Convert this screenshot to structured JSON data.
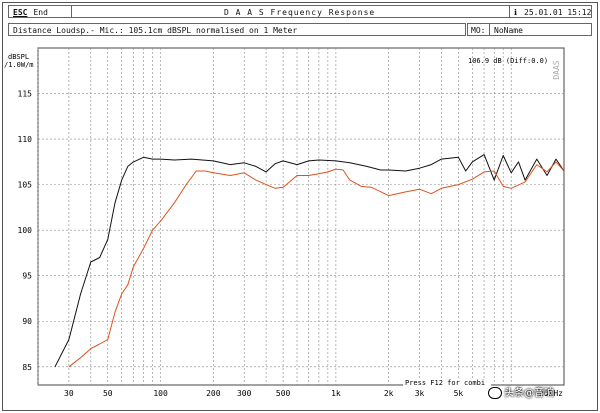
{
  "topbar": {
    "esc_key": "ESC",
    "esc_label": "End",
    "title": "D A A S  Frequency Response",
    "info_icon": "info-icon",
    "datetime": "25.01.01 15:12"
  },
  "infobar": {
    "description": "Distance Loudsp.- Mic.: 105.1cm dBSPL normalised on 1 Meter",
    "mo_label": "MO:",
    "mo_value": "NoName"
  },
  "chart_data": {
    "type": "line",
    "ylabel_line1": "dBSPL",
    "ylabel_line2": "/1.0W/m",
    "ylim": [
      83,
      120
    ],
    "yticks": [
      85,
      90,
      95,
      100,
      105,
      110,
      115
    ],
    "xscale": "log",
    "xlim": [
      20,
      20000
    ],
    "xtick_labels": [
      {
        "f": 30,
        "label": "30"
      },
      {
        "f": 50,
        "label": "50"
      },
      {
        "f": 100,
        "label": "100"
      },
      {
        "f": 200,
        "label": "200"
      },
      {
        "f": 300,
        "label": "300"
      },
      {
        "f": 500,
        "label": "500"
      },
      {
        "f": 1000,
        "label": "1k"
      },
      {
        "f": 2000,
        "label": "2k"
      },
      {
        "f": 3000,
        "label": "3k"
      },
      {
        "f": 5000,
        "label": "5k"
      },
      {
        "f": 20000,
        "label": "20kHz"
      }
    ],
    "grid": true,
    "readout": "106.9 dB (Diff:0.0)",
    "watermark": "DAAS",
    "footer_hint": "Press F12 for combi",
    "series": [
      {
        "color": "#111111",
        "points": [
          [
            25,
            85
          ],
          [
            30,
            88
          ],
          [
            35,
            93
          ],
          [
            40,
            96.5
          ],
          [
            45,
            97
          ],
          [
            50,
            99
          ],
          [
            55,
            103
          ],
          [
            60,
            105.5
          ],
          [
            65,
            107
          ],
          [
            70,
            107.5
          ],
          [
            80,
            108
          ],
          [
            90,
            107.8
          ],
          [
            100,
            107.8
          ],
          [
            120,
            107.7
          ],
          [
            150,
            107.8
          ],
          [
            200,
            107.6
          ],
          [
            250,
            107.2
          ],
          [
            300,
            107.4
          ],
          [
            350,
            107
          ],
          [
            400,
            106.4
          ],
          [
            450,
            107.3
          ],
          [
            500,
            107.6
          ],
          [
            600,
            107.2
          ],
          [
            700,
            107.6
          ],
          [
            800,
            107.7
          ],
          [
            1000,
            107.6
          ],
          [
            1200,
            107.4
          ],
          [
            1500,
            107
          ],
          [
            1800,
            106.6
          ],
          [
            2000,
            106.6
          ],
          [
            2500,
            106.5
          ],
          [
            3000,
            106.8
          ],
          [
            3500,
            107.2
          ],
          [
            4000,
            107.8
          ],
          [
            5000,
            108
          ],
          [
            5500,
            106.5
          ],
          [
            6000,
            107.5
          ],
          [
            7000,
            108.3
          ],
          [
            8000,
            105.5
          ],
          [
            9000,
            108.2
          ],
          [
            10000,
            106.3
          ],
          [
            11000,
            107.5
          ],
          [
            12000,
            105.5
          ],
          [
            14000,
            107.8
          ],
          [
            16000,
            106
          ],
          [
            18000,
            107.8
          ],
          [
            20000,
            106.5
          ]
        ]
      },
      {
        "color": "#e0521c",
        "points": [
          [
            30,
            85
          ],
          [
            35,
            86
          ],
          [
            40,
            87
          ],
          [
            45,
            87.5
          ],
          [
            50,
            88
          ],
          [
            55,
            91
          ],
          [
            60,
            93
          ],
          [
            65,
            94
          ],
          [
            70,
            96
          ],
          [
            80,
            98
          ],
          [
            90,
            100
          ],
          [
            100,
            101
          ],
          [
            120,
            103
          ],
          [
            140,
            105
          ],
          [
            160,
            106.5
          ],
          [
            180,
            106.5
          ],
          [
            200,
            106.3
          ],
          [
            250,
            106
          ],
          [
            300,
            106.3
          ],
          [
            350,
            105.5
          ],
          [
            400,
            105
          ],
          [
            450,
            104.6
          ],
          [
            500,
            104.7
          ],
          [
            600,
            106
          ],
          [
            700,
            106
          ],
          [
            800,
            106.2
          ],
          [
            900,
            106.4
          ],
          [
            1000,
            106.7
          ],
          [
            1100,
            106.6
          ],
          [
            1200,
            105.5
          ],
          [
            1400,
            104.8
          ],
          [
            1600,
            104.7
          ],
          [
            2000,
            103.8
          ],
          [
            2500,
            104.2
          ],
          [
            3000,
            104.5
          ],
          [
            3500,
            104
          ],
          [
            4000,
            104.6
          ],
          [
            5000,
            105
          ],
          [
            6000,
            105.6
          ],
          [
            7000,
            106.4
          ],
          [
            8000,
            106.5
          ],
          [
            9000,
            104.8
          ],
          [
            10000,
            104.6
          ],
          [
            12000,
            105.3
          ],
          [
            14000,
            107.2
          ],
          [
            16000,
            106.4
          ],
          [
            18000,
            107.5
          ],
          [
            20000,
            106.5
          ]
        ]
      }
    ]
  },
  "watermark_text": "头条@音响"
}
